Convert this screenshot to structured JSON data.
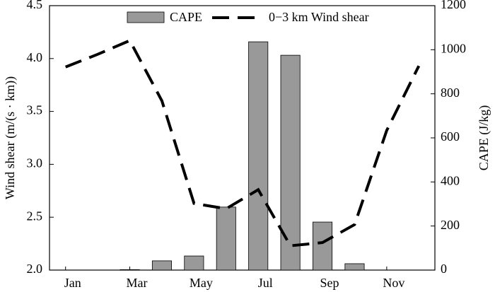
{
  "chart_data": {
    "type": "bar",
    "categories": [
      "Jan",
      null,
      "Mar",
      null,
      "May",
      null,
      "Jul",
      null,
      "Sep",
      null,
      "Nov",
      null
    ],
    "series": [
      {
        "name": "CAPE",
        "type": "bar",
        "axis": "y2",
        "color": "#999999",
        "values": [
          0,
          0,
          2,
          42,
          64,
          286,
          1036,
          975,
          218,
          29,
          0,
          0
        ]
      },
      {
        "name": "0−3 km  Wind shear",
        "type": "line",
        "axis": "y",
        "color": "#000000",
        "values": [
          3.92,
          4.04,
          4.17,
          3.6,
          2.63,
          2.58,
          2.76,
          2.23,
          2.26,
          2.43,
          3.32,
          3.93
        ]
      }
    ],
    "y_label": "Wind shear (m/(s · km))",
    "y2_label": "CAPE (J/kg)",
    "ylim": [
      2.0,
      4.5
    ],
    "yticks": [
      {
        "value": 2,
        "label": "2.0"
      },
      2.5,
      {
        "value": 3,
        "label": "3.0"
      },
      3.5,
      {
        "value": 4,
        "label": "4.0"
      },
      4.5
    ],
    "y2lim": [
      0,
      1200
    ],
    "y2ticks": [
      0,
      200,
      400,
      600,
      800,
      1000,
      1200
    ],
    "grid": false,
    "legend": "top"
  }
}
